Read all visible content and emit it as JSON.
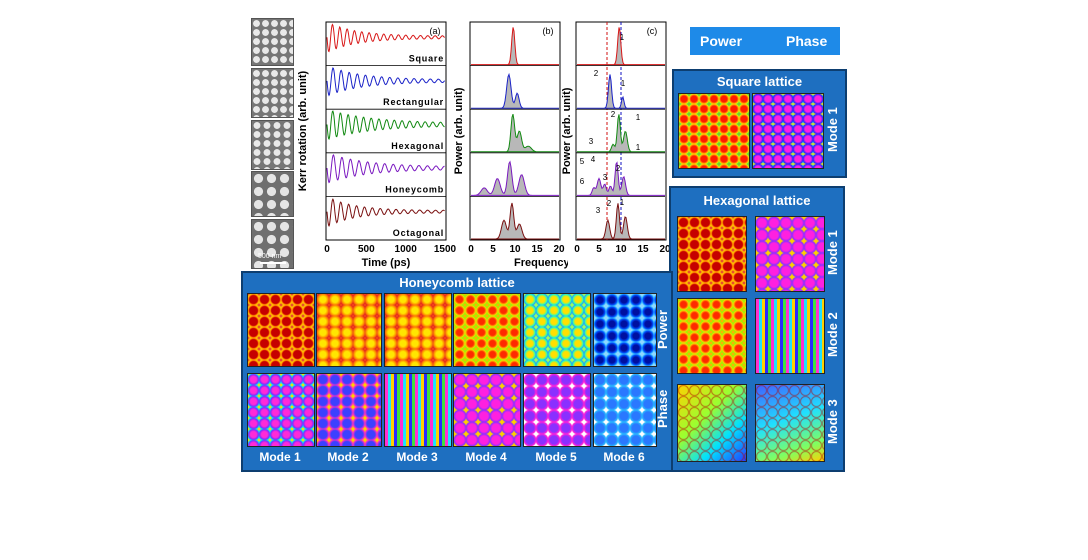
{
  "sem": {
    "scale_label": "500 nm"
  },
  "panel_a": {
    "tag": "(a)",
    "ylabel": "Kerr rotation (arb. unit)",
    "xlabel": "Time (ps)",
    "xticks": [
      "0",
      "500",
      "1000",
      "1500"
    ],
    "traces": [
      {
        "label": "Square",
        "color": "#d81818"
      },
      {
        "label": "Rectangular",
        "color": "#1a22c8"
      },
      {
        "label": "Hexagonal",
        "color": "#128a12"
      },
      {
        "label": "Honeycomb",
        "color": "#7a18c0"
      },
      {
        "label": "Octagonal",
        "color": "#7a1010"
      }
    ]
  },
  "panel_b": {
    "tag": "(b)",
    "ylabel": "Power (arb. unit)",
    "xlabel": "Frequency (GHz)",
    "xticks": [
      "0",
      "5",
      "10",
      "15",
      "20"
    ]
  },
  "panel_c": {
    "tag": "(c)",
    "ylabel": "Power (arb. unit)",
    "xticks": [
      "0",
      "5",
      "10",
      "15",
      "20"
    ],
    "mode_numbers": [
      "1",
      "2",
      "1",
      "2",
      "1",
      "3",
      "1",
      "2",
      "3",
      "4",
      "5",
      "6",
      "1",
      "2",
      "3"
    ]
  },
  "legend": {
    "power": "Power",
    "phase": "Phase",
    "color": "#1e8ae8"
  },
  "square": {
    "title": "Square lattice",
    "mode": "Mode 1"
  },
  "hexagonal": {
    "title": "Hexagonal lattice",
    "modes": [
      "Mode 1",
      "Mode 2",
      "Mode 3"
    ]
  },
  "honeycomb": {
    "title": "Honeycomb lattice",
    "row_labels": [
      "Power",
      "Phase"
    ],
    "modes": [
      "Mode 1",
      "Mode 2",
      "Mode 3",
      "Mode 4",
      "Mode 5",
      "Mode 6"
    ]
  },
  "colors": {
    "box": "#1e6fc0",
    "box_border": "#0d3e70"
  }
}
